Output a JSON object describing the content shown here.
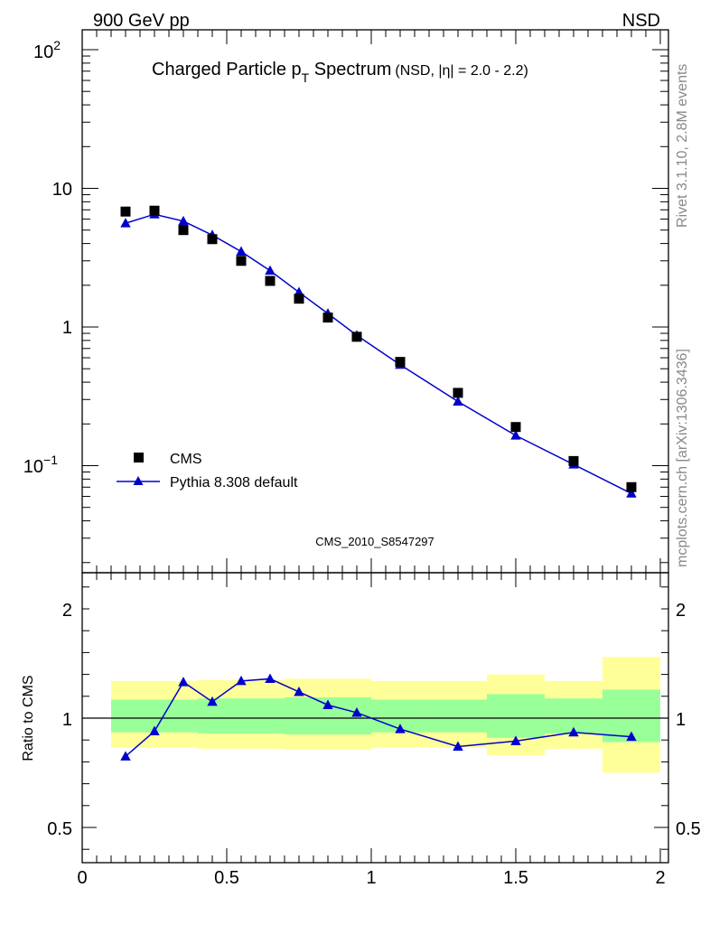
{
  "header": {
    "left_label": "900 GeV pp",
    "right_label": "NSD"
  },
  "side_labels": {
    "rivet": "Rivet 3.1.10,  2.8M events",
    "mcplots": "mcplots.cern.ch [arXiv:1306.3436]"
  },
  "chart_data": [
    {
      "type": "scatter",
      "title_main": "Charged Particle p",
      "title_sub": "T",
      "title_rest": " Spectrum",
      "title_small": "(NSD, |η| = 2.0 - 2.2)",
      "watermark": "CMS_2010_S8547297",
      "yscale": "log",
      "xlim": [
        0,
        2
      ],
      "ylim": [
        0.02,
        150
      ],
      "y_tick_labels": [
        "10",
        "1"
      ],
      "y_tick_label_top": {
        "base": "10",
        "exp": "2"
      },
      "y_tick_label_bottom": {
        "base": "10",
        "exp": "−1"
      },
      "legend_position": "bottom-left",
      "series": [
        {
          "name": "CMS",
          "marker": "square",
          "color": "#000000",
          "x": [
            0.15,
            0.25,
            0.35,
            0.45,
            0.55,
            0.65,
            0.75,
            0.85,
            0.95,
            1.1,
            1.3,
            1.5,
            1.7,
            1.9
          ],
          "y": [
            6.8,
            6.9,
            5.0,
            4.3,
            3.0,
            2.15,
            1.6,
            1.17,
            0.85,
            0.56,
            0.335,
            0.19,
            0.108,
            0.07
          ]
        },
        {
          "name": "Pythia 8.308 default",
          "marker": "triangle",
          "color": "#0000cc",
          "x": [
            0.15,
            0.25,
            0.35,
            0.45,
            0.55,
            0.65,
            0.75,
            0.85,
            0.95,
            1.1,
            1.3,
            1.5,
            1.7,
            1.9
          ],
          "y": [
            5.6,
            6.5,
            5.8,
            4.6,
            3.5,
            2.55,
            1.78,
            1.25,
            0.87,
            0.535,
            0.29,
            0.165,
            0.102,
            0.063
          ]
        }
      ]
    },
    {
      "type": "line",
      "ylabel": "Ratio to CMS",
      "xlim": [
        0,
        2
      ],
      "ylim": [
        0.35,
        2.3
      ],
      "x_tick_labels": [
        "0",
        "0.5",
        "1",
        "1.5",
        "2"
      ],
      "y_tick_labels": [
        "2",
        "1",
        "0.5"
      ],
      "reference_line": 1,
      "band_colors": {
        "inner": "#99ff99",
        "outer": "#ffff99"
      },
      "bands": [
        {
          "x0": 0.1,
          "x1": 0.2,
          "inner": [
            0.935,
            1.085
          ],
          "outer": [
            0.865,
            1.17
          ]
        },
        {
          "x0": 0.2,
          "x1": 0.3,
          "inner": [
            0.935,
            1.085
          ],
          "outer": [
            0.865,
            1.17
          ]
        },
        {
          "x0": 0.3,
          "x1": 0.4,
          "inner": [
            0.935,
            1.085
          ],
          "outer": [
            0.865,
            1.17
          ]
        },
        {
          "x0": 0.4,
          "x1": 0.5,
          "inner": [
            0.93,
            1.09
          ],
          "outer": [
            0.86,
            1.175
          ]
        },
        {
          "x0": 0.5,
          "x1": 0.6,
          "inner": [
            0.93,
            1.09
          ],
          "outer": [
            0.86,
            1.175
          ]
        },
        {
          "x0": 0.6,
          "x1": 0.7,
          "inner": [
            0.93,
            1.09
          ],
          "outer": [
            0.86,
            1.175
          ]
        },
        {
          "x0": 0.7,
          "x1": 0.8,
          "inner": [
            0.925,
            1.095
          ],
          "outer": [
            0.855,
            1.18
          ]
        },
        {
          "x0": 0.8,
          "x1": 0.9,
          "inner": [
            0.925,
            1.095
          ],
          "outer": [
            0.855,
            1.18
          ]
        },
        {
          "x0": 0.9,
          "x1": 1.0,
          "inner": [
            0.925,
            1.095
          ],
          "outer": [
            0.855,
            1.18
          ]
        },
        {
          "x0": 1.0,
          "x1": 1.2,
          "inner": [
            0.935,
            1.085
          ],
          "outer": [
            0.865,
            1.17
          ]
        },
        {
          "x0": 1.2,
          "x1": 1.4,
          "inner": [
            0.935,
            1.085
          ],
          "outer": [
            0.865,
            1.17
          ]
        },
        {
          "x0": 1.4,
          "x1": 1.6,
          "inner": [
            0.91,
            1.11
          ],
          "outer": [
            0.83,
            1.2
          ]
        },
        {
          "x0": 1.6,
          "x1": 1.8,
          "inner": [
            0.93,
            1.09
          ],
          "outer": [
            0.86,
            1.17
          ]
        },
        {
          "x0": 1.8,
          "x1": 1.9,
          "inner": [
            0.89,
            1.13
          ],
          "outer": [
            0.75,
            1.28
          ]
        },
        {
          "x0": 1.9,
          "x1": 2.0,
          "inner": [
            0.89,
            1.13
          ],
          "outer": [
            0.75,
            1.28
          ]
        }
      ],
      "series": [
        {
          "name": "Pythia 8.308 default",
          "marker": "triangle",
          "color": "#0000cc",
          "x": [
            0.15,
            0.25,
            0.35,
            0.45,
            0.55,
            0.65,
            0.75,
            0.85,
            0.95,
            1.1,
            1.3,
            1.5,
            1.7,
            1.9
          ],
          "y": [
            0.825,
            0.94,
            1.165,
            1.075,
            1.17,
            1.18,
            1.12,
            1.06,
            1.025,
            0.95,
            0.87,
            0.895,
            0.935,
            0.915
          ]
        }
      ]
    }
  ]
}
